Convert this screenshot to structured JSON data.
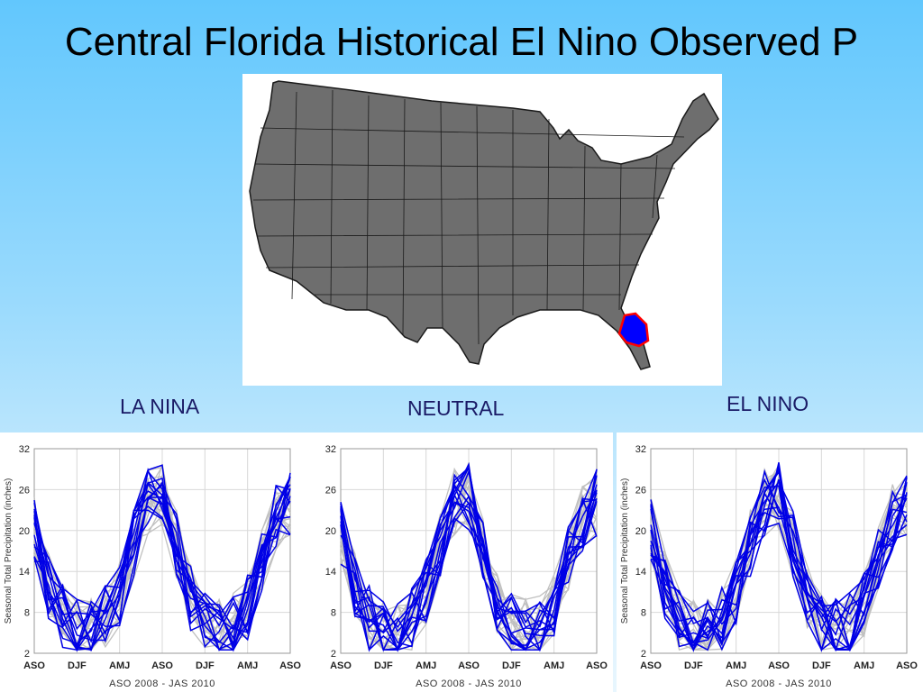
{
  "slide": {
    "title": "Central Florida Historical El Nino Observed P"
  },
  "map": {
    "highlight_region": "Central Florida",
    "land_color": "#6e6e6e",
    "highlight_fill": "#0000ff",
    "highlight_border": "#ff0000"
  },
  "labels": {
    "la_nina": "LA NINA",
    "neutral": "NEUTRAL",
    "el_nino": "EL NINO"
  },
  "colors": {
    "event_series": "#0000e6",
    "all_years": "#c0c0c0"
  },
  "chart_data": [
    {
      "type": "line",
      "title": "LA NINA",
      "ylabel": "Seasonal Total Precipitation (inches)",
      "xlabel": "ASO 2008 - JAS 2010",
      "ylim": [
        2,
        32
      ],
      "yticks": [
        2,
        8,
        14,
        20,
        26,
        32
      ],
      "x_tick_labels": [
        "ASO",
        "DJF",
        "AMJ",
        "ASO",
        "DJF",
        "AMJ",
        "ASO"
      ],
      "x_tick_index": [
        0,
        3,
        6,
        9,
        12,
        15,
        18
      ],
      "n_points": 19,
      "grid": true,
      "seed": 11
    },
    {
      "type": "line",
      "title": "NEUTRAL",
      "ylabel": "",
      "xlabel": "ASO 2008 - JAS 2010",
      "ylim": [
        2,
        32
      ],
      "yticks": [
        2,
        8,
        14,
        20,
        26,
        32
      ],
      "x_tick_labels": [
        "ASO",
        "DJF",
        "AMJ",
        "ASO",
        "DJF",
        "AMJ",
        "ASO"
      ],
      "x_tick_index": [
        0,
        3,
        6,
        9,
        12,
        15,
        18
      ],
      "n_points": 19,
      "grid": true,
      "seed": 23
    },
    {
      "type": "line",
      "title": "EL NINO",
      "ylabel": "Seasonal Total Precipitation (inches)",
      "xlabel": "ASO 2008 - JAS 2010",
      "ylim": [
        2,
        32
      ],
      "yticks": [
        2,
        8,
        14,
        20,
        26,
        32
      ],
      "x_tick_labels": [
        "ASO",
        "DJF",
        "AMJ",
        "ASO",
        "DJF",
        "AMJ",
        "ASO"
      ],
      "x_tick_index": [
        0,
        3,
        6,
        9,
        12,
        15,
        18
      ],
      "n_points": 19,
      "grid": true,
      "seed": 37
    }
  ]
}
